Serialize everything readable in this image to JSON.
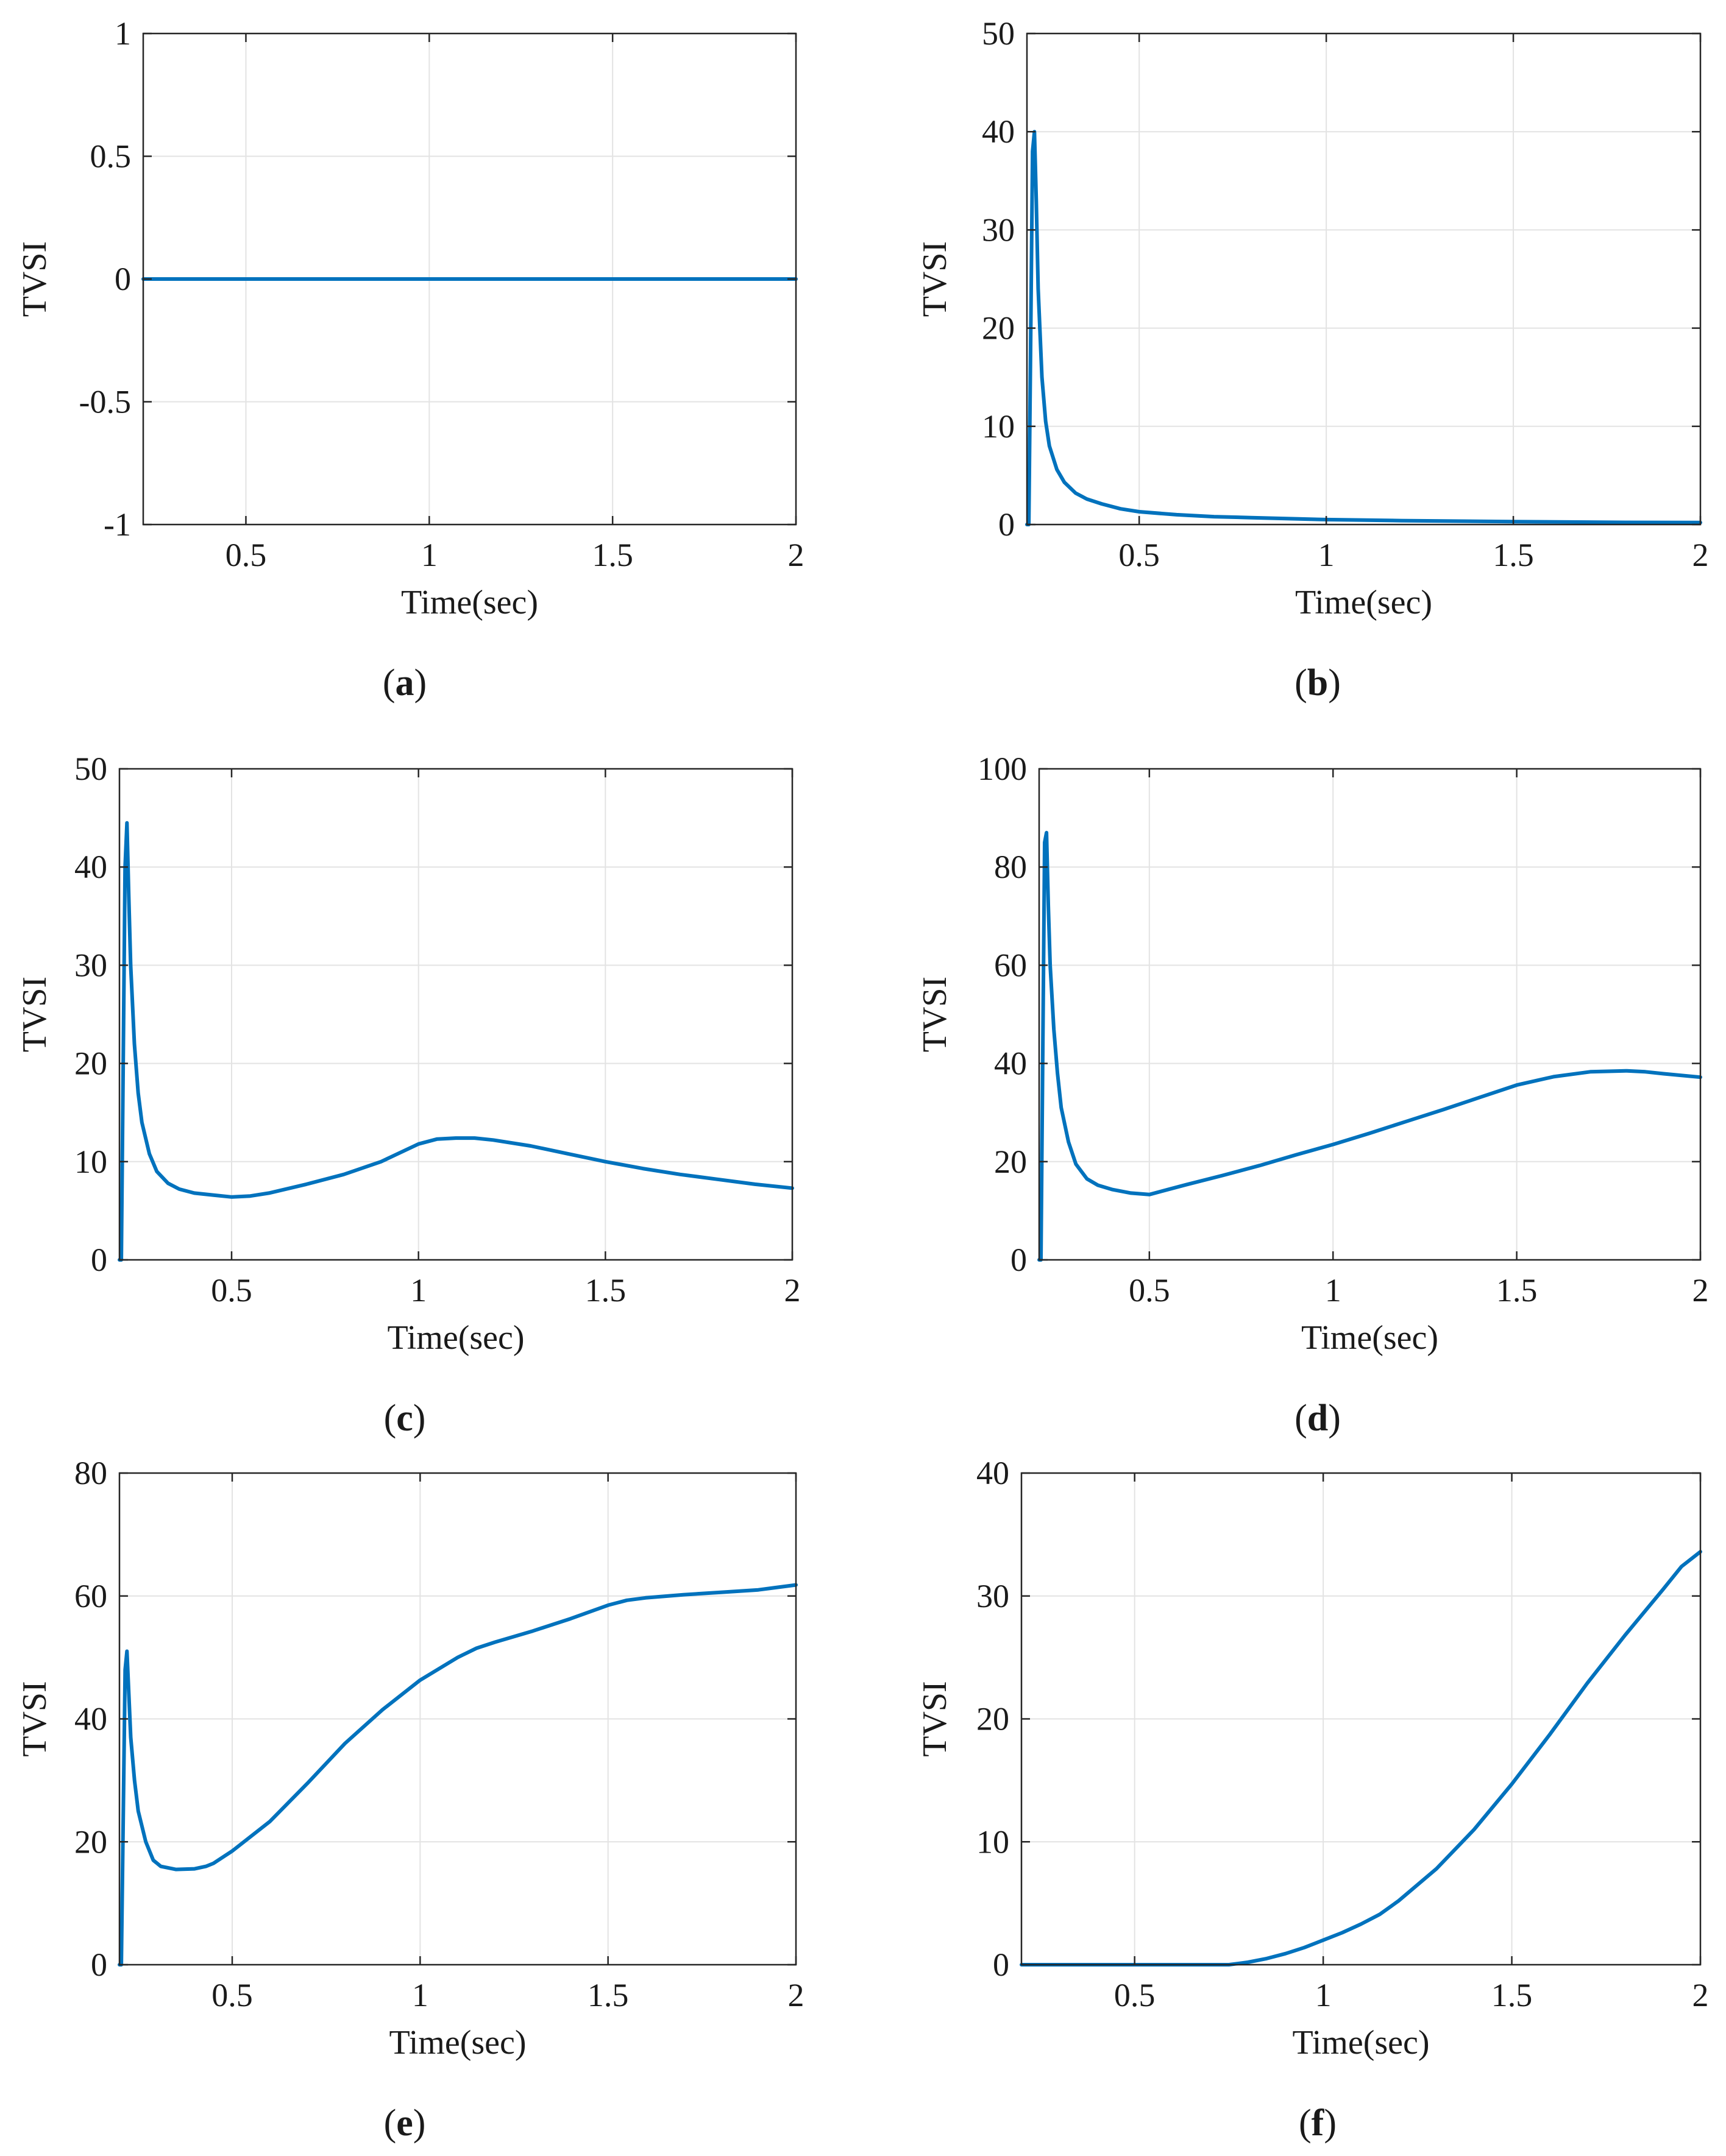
{
  "figure": {
    "line_color": "#0072BD",
    "grid_color": "#e3e3e3",
    "axis_color": "#262626"
  },
  "chart_data": [
    {
      "id": "a",
      "caption": "a",
      "type": "line",
      "xlabel": "Time(sec)",
      "ylabel": "TVSI",
      "xlim": [
        0.22,
        2
      ],
      "ylim": [
        -1,
        1
      ],
      "xticks": [
        0.5,
        1,
        1.5,
        2
      ],
      "xtick_labels": [
        "0.5",
        "1",
        "1.5",
        "2"
      ],
      "yticks": [
        -1,
        -0.5,
        0,
        0.5,
        1
      ],
      "ytick_labels": [
        "-1",
        "-0.5",
        "0",
        "0.5",
        "1"
      ],
      "grid": true,
      "series": [
        {
          "name": "TVSI",
          "x": [
            0.22,
            2
          ],
          "y": [
            0,
            0
          ]
        }
      ]
    },
    {
      "id": "b",
      "caption": "b",
      "type": "line",
      "xlabel": "Time(sec)",
      "ylabel": "TVSI",
      "xlim": [
        0.2,
        2
      ],
      "ylim": [
        0,
        50
      ],
      "xticks": [
        0.5,
        1,
        1.5,
        2
      ],
      "xtick_labels": [
        "0.5",
        "1",
        "1.5",
        "2"
      ],
      "yticks": [
        0,
        10,
        20,
        30,
        40,
        50
      ],
      "ytick_labels": [
        "0",
        "10",
        "20",
        "30",
        "40",
        "50"
      ],
      "grid": true,
      "series": [
        {
          "name": "TVSI",
          "x": [
            0.2,
            0.205,
            0.215,
            0.22,
            0.225,
            0.23,
            0.24,
            0.25,
            0.26,
            0.28,
            0.3,
            0.33,
            0.36,
            0.4,
            0.45,
            0.5,
            0.6,
            0.7,
            0.8,
            1.0,
            1.2,
            1.5,
            1.8,
            2.0
          ],
          "y": [
            0,
            0,
            38,
            40,
            33,
            24,
            15,
            10.5,
            8,
            5.6,
            4.3,
            3.2,
            2.6,
            2.1,
            1.6,
            1.3,
            1.0,
            0.8,
            0.7,
            0.5,
            0.4,
            0.3,
            0.22,
            0.2
          ]
        }
      ]
    },
    {
      "id": "c",
      "caption": "c",
      "type": "line",
      "xlabel": "Time(sec)",
      "ylabel": "TVSI",
      "xlim": [
        0.2,
        2
      ],
      "ylim": [
        0,
        50
      ],
      "xticks": [
        0.5,
        1,
        1.5,
        2
      ],
      "xtick_labels": [
        "0.5",
        "1",
        "1.5",
        "2"
      ],
      "yticks": [
        0,
        10,
        20,
        30,
        40,
        50
      ],
      "ytick_labels": [
        "0",
        "10",
        "20",
        "30",
        "40",
        "50"
      ],
      "grid": true,
      "series": [
        {
          "name": "TVSI",
          "x": [
            0.2,
            0.205,
            0.215,
            0.22,
            0.225,
            0.23,
            0.24,
            0.25,
            0.26,
            0.28,
            0.3,
            0.33,
            0.36,
            0.4,
            0.45,
            0.5,
            0.55,
            0.6,
            0.7,
            0.8,
            0.9,
            1.0,
            1.05,
            1.1,
            1.15,
            1.2,
            1.3,
            1.4,
            1.5,
            1.6,
            1.7,
            1.8,
            1.9,
            2.0
          ],
          "y": [
            0,
            0,
            40,
            44.5,
            37,
            30,
            22,
            17,
            14,
            10.8,
            9,
            7.8,
            7.2,
            6.8,
            6.6,
            6.4,
            6.5,
            6.8,
            7.7,
            8.7,
            10,
            11.8,
            12.3,
            12.4,
            12.4,
            12.2,
            11.6,
            10.8,
            10,
            9.3,
            8.7,
            8.2,
            7.7,
            7.3
          ]
        }
      ]
    },
    {
      "id": "d",
      "caption": "d",
      "type": "line",
      "xlabel": "Time(sec)",
      "ylabel": "TVSI",
      "xlim": [
        0.2,
        2
      ],
      "ylim": [
        0,
        100
      ],
      "xticks": [
        0.5,
        1,
        1.5,
        2
      ],
      "xtick_labels": [
        "0.5",
        "1",
        "1.5",
        "2"
      ],
      "yticks": [
        0,
        20,
        40,
        60,
        80,
        100
      ],
      "ytick_labels": [
        "0",
        "20",
        "40",
        "60",
        "80",
        "100"
      ],
      "grid": true,
      "series": [
        {
          "name": "TVSI",
          "x": [
            0.2,
            0.205,
            0.215,
            0.22,
            0.225,
            0.23,
            0.24,
            0.25,
            0.26,
            0.28,
            0.3,
            0.33,
            0.36,
            0.4,
            0.45,
            0.5,
            0.55,
            0.6,
            0.7,
            0.8,
            0.9,
            1.0,
            1.1,
            1.2,
            1.3,
            1.4,
            1.5,
            1.6,
            1.7,
            1.8,
            1.85,
            1.9,
            2.0
          ],
          "y": [
            0,
            0,
            85,
            87,
            72,
            60,
            47,
            38,
            31,
            24,
            19.5,
            16.5,
            15.2,
            14.3,
            13.6,
            13.3,
            14.3,
            15.3,
            17.2,
            19.2,
            21.4,
            23.5,
            25.8,
            28.2,
            30.6,
            33.1,
            35.6,
            37.3,
            38.3,
            38.5,
            38.3,
            37.9,
            37.2
          ]
        }
      ]
    },
    {
      "id": "e",
      "caption": "e",
      "type": "line",
      "xlabel": "Time(sec)",
      "ylabel": "TVSI",
      "xlim": [
        0.2,
        2
      ],
      "ylim": [
        0,
        80
      ],
      "xticks": [
        0.5,
        1,
        1.5,
        2
      ],
      "xtick_labels": [
        "0.5",
        "1",
        "1.5",
        "2"
      ],
      "yticks": [
        0,
        20,
        40,
        60,
        80
      ],
      "ytick_labels": [
        "0",
        "20",
        "40",
        "60",
        "80"
      ],
      "grid": true,
      "series": [
        {
          "name": "TVSI",
          "x": [
            0.2,
            0.205,
            0.215,
            0.22,
            0.225,
            0.23,
            0.24,
            0.25,
            0.27,
            0.29,
            0.31,
            0.35,
            0.4,
            0.43,
            0.45,
            0.5,
            0.6,
            0.7,
            0.8,
            0.9,
            1.0,
            1.1,
            1.15,
            1.2,
            1.3,
            1.4,
            1.5,
            1.55,
            1.6,
            1.7,
            1.8,
            1.9,
            2.0
          ],
          "y": [
            0,
            0,
            48,
            51,
            44,
            37,
            30,
            25,
            20,
            17,
            16,
            15.5,
            15.6,
            16,
            16.5,
            18.5,
            23.3,
            29.5,
            36,
            41.5,
            46.3,
            50,
            51.5,
            52.5,
            54.3,
            56.3,
            58.5,
            59.3,
            59.7,
            60.2,
            60.6,
            61,
            61.8
          ]
        }
      ]
    },
    {
      "id": "f",
      "caption": "f",
      "type": "line",
      "xlabel": "Time(sec)",
      "ylabel": "TVSI",
      "xlim": [
        0.2,
        2
      ],
      "ylim": [
        0,
        40
      ],
      "xticks": [
        0.5,
        1,
        1.5,
        2
      ],
      "xtick_labels": [
        "0.5",
        "1",
        "1.5",
        "2"
      ],
      "yticks": [
        0,
        10,
        20,
        30,
        40
      ],
      "ytick_labels": [
        "0",
        "10",
        "20",
        "30",
        "40"
      ],
      "grid": true,
      "series": [
        {
          "name": "TVSI",
          "x": [
            0.2,
            0.5,
            0.75,
            0.8,
            0.85,
            0.9,
            0.95,
            1.0,
            1.05,
            1.1,
            1.15,
            1.2,
            1.3,
            1.4,
            1.5,
            1.6,
            1.7,
            1.8,
            1.9,
            1.95,
            2.0
          ],
          "y": [
            0,
            0,
            0,
            0.2,
            0.5,
            0.9,
            1.4,
            2.0,
            2.6,
            3.3,
            4.1,
            5.2,
            7.8,
            11,
            14.7,
            18.7,
            22.9,
            26.8,
            30.5,
            32.4,
            33.6
          ]
        }
      ]
    }
  ]
}
